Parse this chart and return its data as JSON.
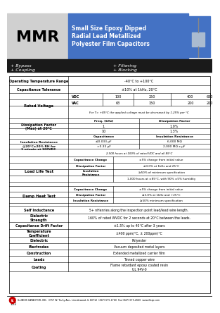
{
  "title": "MMR",
  "subtitle_lines": [
    "Small Size Epoxy Dipped",
    "Radial Lead Metallized",
    "Polyester Film Capacitors"
  ],
  "bullets_left": [
    "+ Bypass",
    "+ Coupling"
  ],
  "bullets_right": [
    "+ Filtering",
    "+ Blocking"
  ],
  "header_bg": "#4472c4",
  "header_text_color": "#ffffff",
  "mmr_bg": "#d0d0d0",
  "bullets_bg": "#1a1a1a",
  "bullets_text_color": "#ffffff",
  "sub_cols": [
    90,
    140,
    185,
    240,
    297
  ],
  "sub_labels_vdc": [
    "100",
    "250",
    "400",
    "630"
  ],
  "sub_labels_vac": [
    "63",
    "150",
    "200",
    "200"
  ],
  "footer_text": "ILLINOIS CAPACITOR, INC.  3757 W. Touhy Ave., Lincolnwood, IL 60712  (847) 675-1760  Fax (847) 675-2660  www.illcap.com",
  "page_num": "152"
}
